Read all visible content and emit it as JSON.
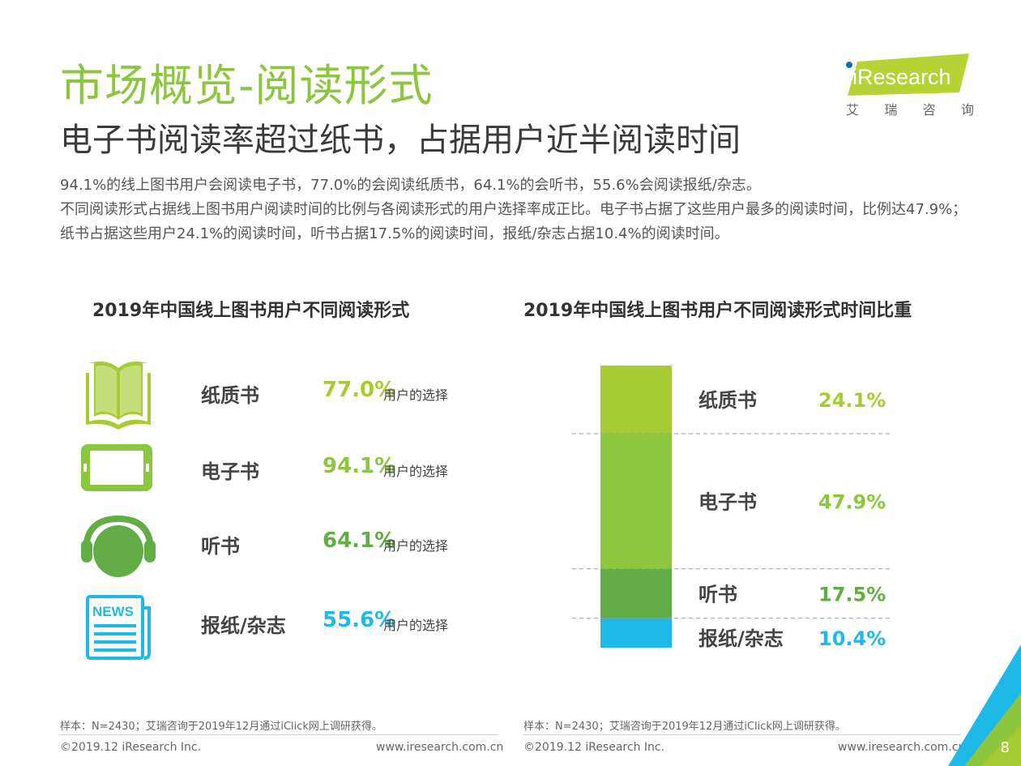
{
  "header": {
    "title": "市场概览-阅读形式",
    "subtitle": "电子书阅读率超过纸书，占据用户近半阅读时间",
    "body": [
      "94.1%的线上图书用户会阅读电子书，77.0%的会阅读纸质书，64.1%的会听书，55.6%会阅读报纸/杂志。",
      "不同阅读形式占据线上图书用户阅读时间的比例与各阅读形式的用户选择率成正比。电子书占据了这些用户最多的阅读时间，比例达47.9%；纸书占据这些用户24.1%的阅读时间，听书占据17.5%的阅读时间，报纸/杂志占据10.4%的阅读时间。"
    ]
  },
  "logo": {
    "text": "iResearch",
    "cn": [
      "艾",
      "瑞",
      "咨",
      "询"
    ]
  },
  "colors": {
    "title_green": "#8cc63f",
    "lime": "#a6cb33",
    "green": "#8dc63f",
    "dark_green": "#63ad46",
    "cyan": "#1fb9e8"
  },
  "left_panel": {
    "title": "2019年中国线上图书用户不同阅读形式",
    "suffix": "用户的选择",
    "rows": [
      {
        "name": "纸质书",
        "value": "77.0%",
        "icon": "book-icon",
        "color": "#a6cb33"
      },
      {
        "name": "电子书",
        "value": "94.1%",
        "icon": "tablet-icon",
        "color": "#8dc63f"
      },
      {
        "name": "听书",
        "value": "64.1%",
        "icon": "headphones-icon",
        "color": "#63ad46"
      },
      {
        "name": "报纸/杂志",
        "value": "55.6%",
        "icon": "newspaper-icon",
        "color": "#1fb9e8"
      }
    ],
    "news_glyph": "NEWS"
  },
  "chart_data": {
    "type": "bar",
    "title": "2019年中国线上图书用户不同阅读形式时间比重",
    "stacked": true,
    "unit": "%",
    "series": [
      {
        "name": "纸质书",
        "value": 24.1,
        "label": "24.1%",
        "color": "#a6cb33"
      },
      {
        "name": "电子书",
        "value": 47.9,
        "label": "47.9%",
        "color": "#8dc63f"
      },
      {
        "name": "听书",
        "value": 17.5,
        "label": "17.5%",
        "color": "#63ad46"
      },
      {
        "name": "报纸/杂志",
        "value": 10.4,
        "label": "10.4%",
        "color": "#1fb9e8"
      }
    ]
  },
  "footer": {
    "note": "样本：N=2430；艾瑞咨询于2019年12月通过iClick网上调研获得。",
    "copyright": "©2019.12 iResearch Inc.",
    "url": "www.iresearch.com.cn",
    "page": "8"
  }
}
